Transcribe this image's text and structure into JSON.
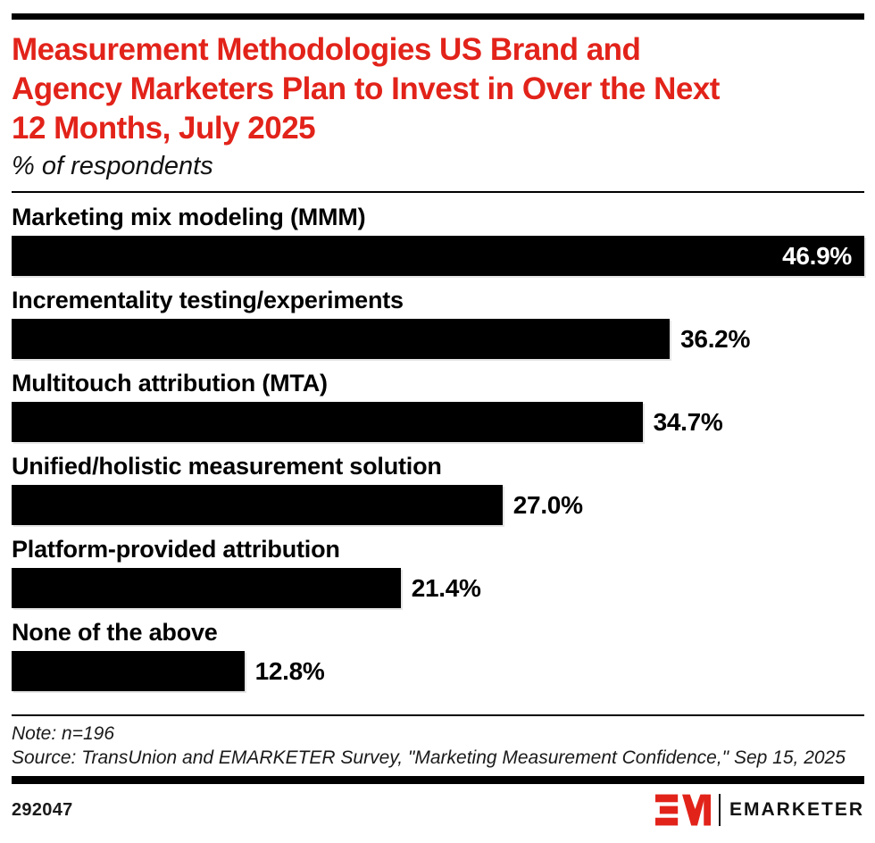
{
  "header": {
    "title": "Measurement Methodologies US Brand and Agency Marketers Plan to Invest in Over the Next 12 Months, July 2025",
    "title_lines": [
      "Measurement Methodologies US Brand and",
      "Agency Marketers Plan to Invest in Over the Next",
      "12 Months, July 2025"
    ],
    "subtitle": "% of respondents"
  },
  "chart_data": {
    "type": "bar",
    "orientation": "horizontal",
    "title": "Measurement Methodologies US Brand and Agency Marketers Plan to Invest in Over the Next 12 Months, July 2025",
    "xlabel": "% of respondents",
    "categories": [
      "Marketing mix modeling (MMM)",
      "Incrementality testing/experiments",
      "Multitouch attribution (MTA)",
      "Unified/holistic measurement solution",
      "Platform-provided attribution",
      "None of the above"
    ],
    "values": [
      46.9,
      36.2,
      34.7,
      27.0,
      21.4,
      12.8
    ],
    "labels": [
      "46.9%",
      "36.2%",
      "34.7%",
      "27.0%",
      "21.4%",
      "12.8%"
    ],
    "value_label_positions": [
      "inside",
      "outside",
      "outside",
      "outside",
      "outside",
      "outside"
    ],
    "xlim": [
      0,
      46.9
    ],
    "grid": false,
    "legend": false,
    "bar_color": "#000000"
  },
  "footer": {
    "note": "Note: n=196",
    "source": "Source: TransUnion and EMARKETER Survey, \"Marketing Measurement Confidence,\" Sep 15, 2025",
    "chart_id": "292047",
    "brand_name": "EMARKETER"
  },
  "colors": {
    "accent_red": "#E2231A",
    "bar_black": "#000000",
    "background": "#FFFFFF",
    "footer_text": "#1A1A1A"
  }
}
